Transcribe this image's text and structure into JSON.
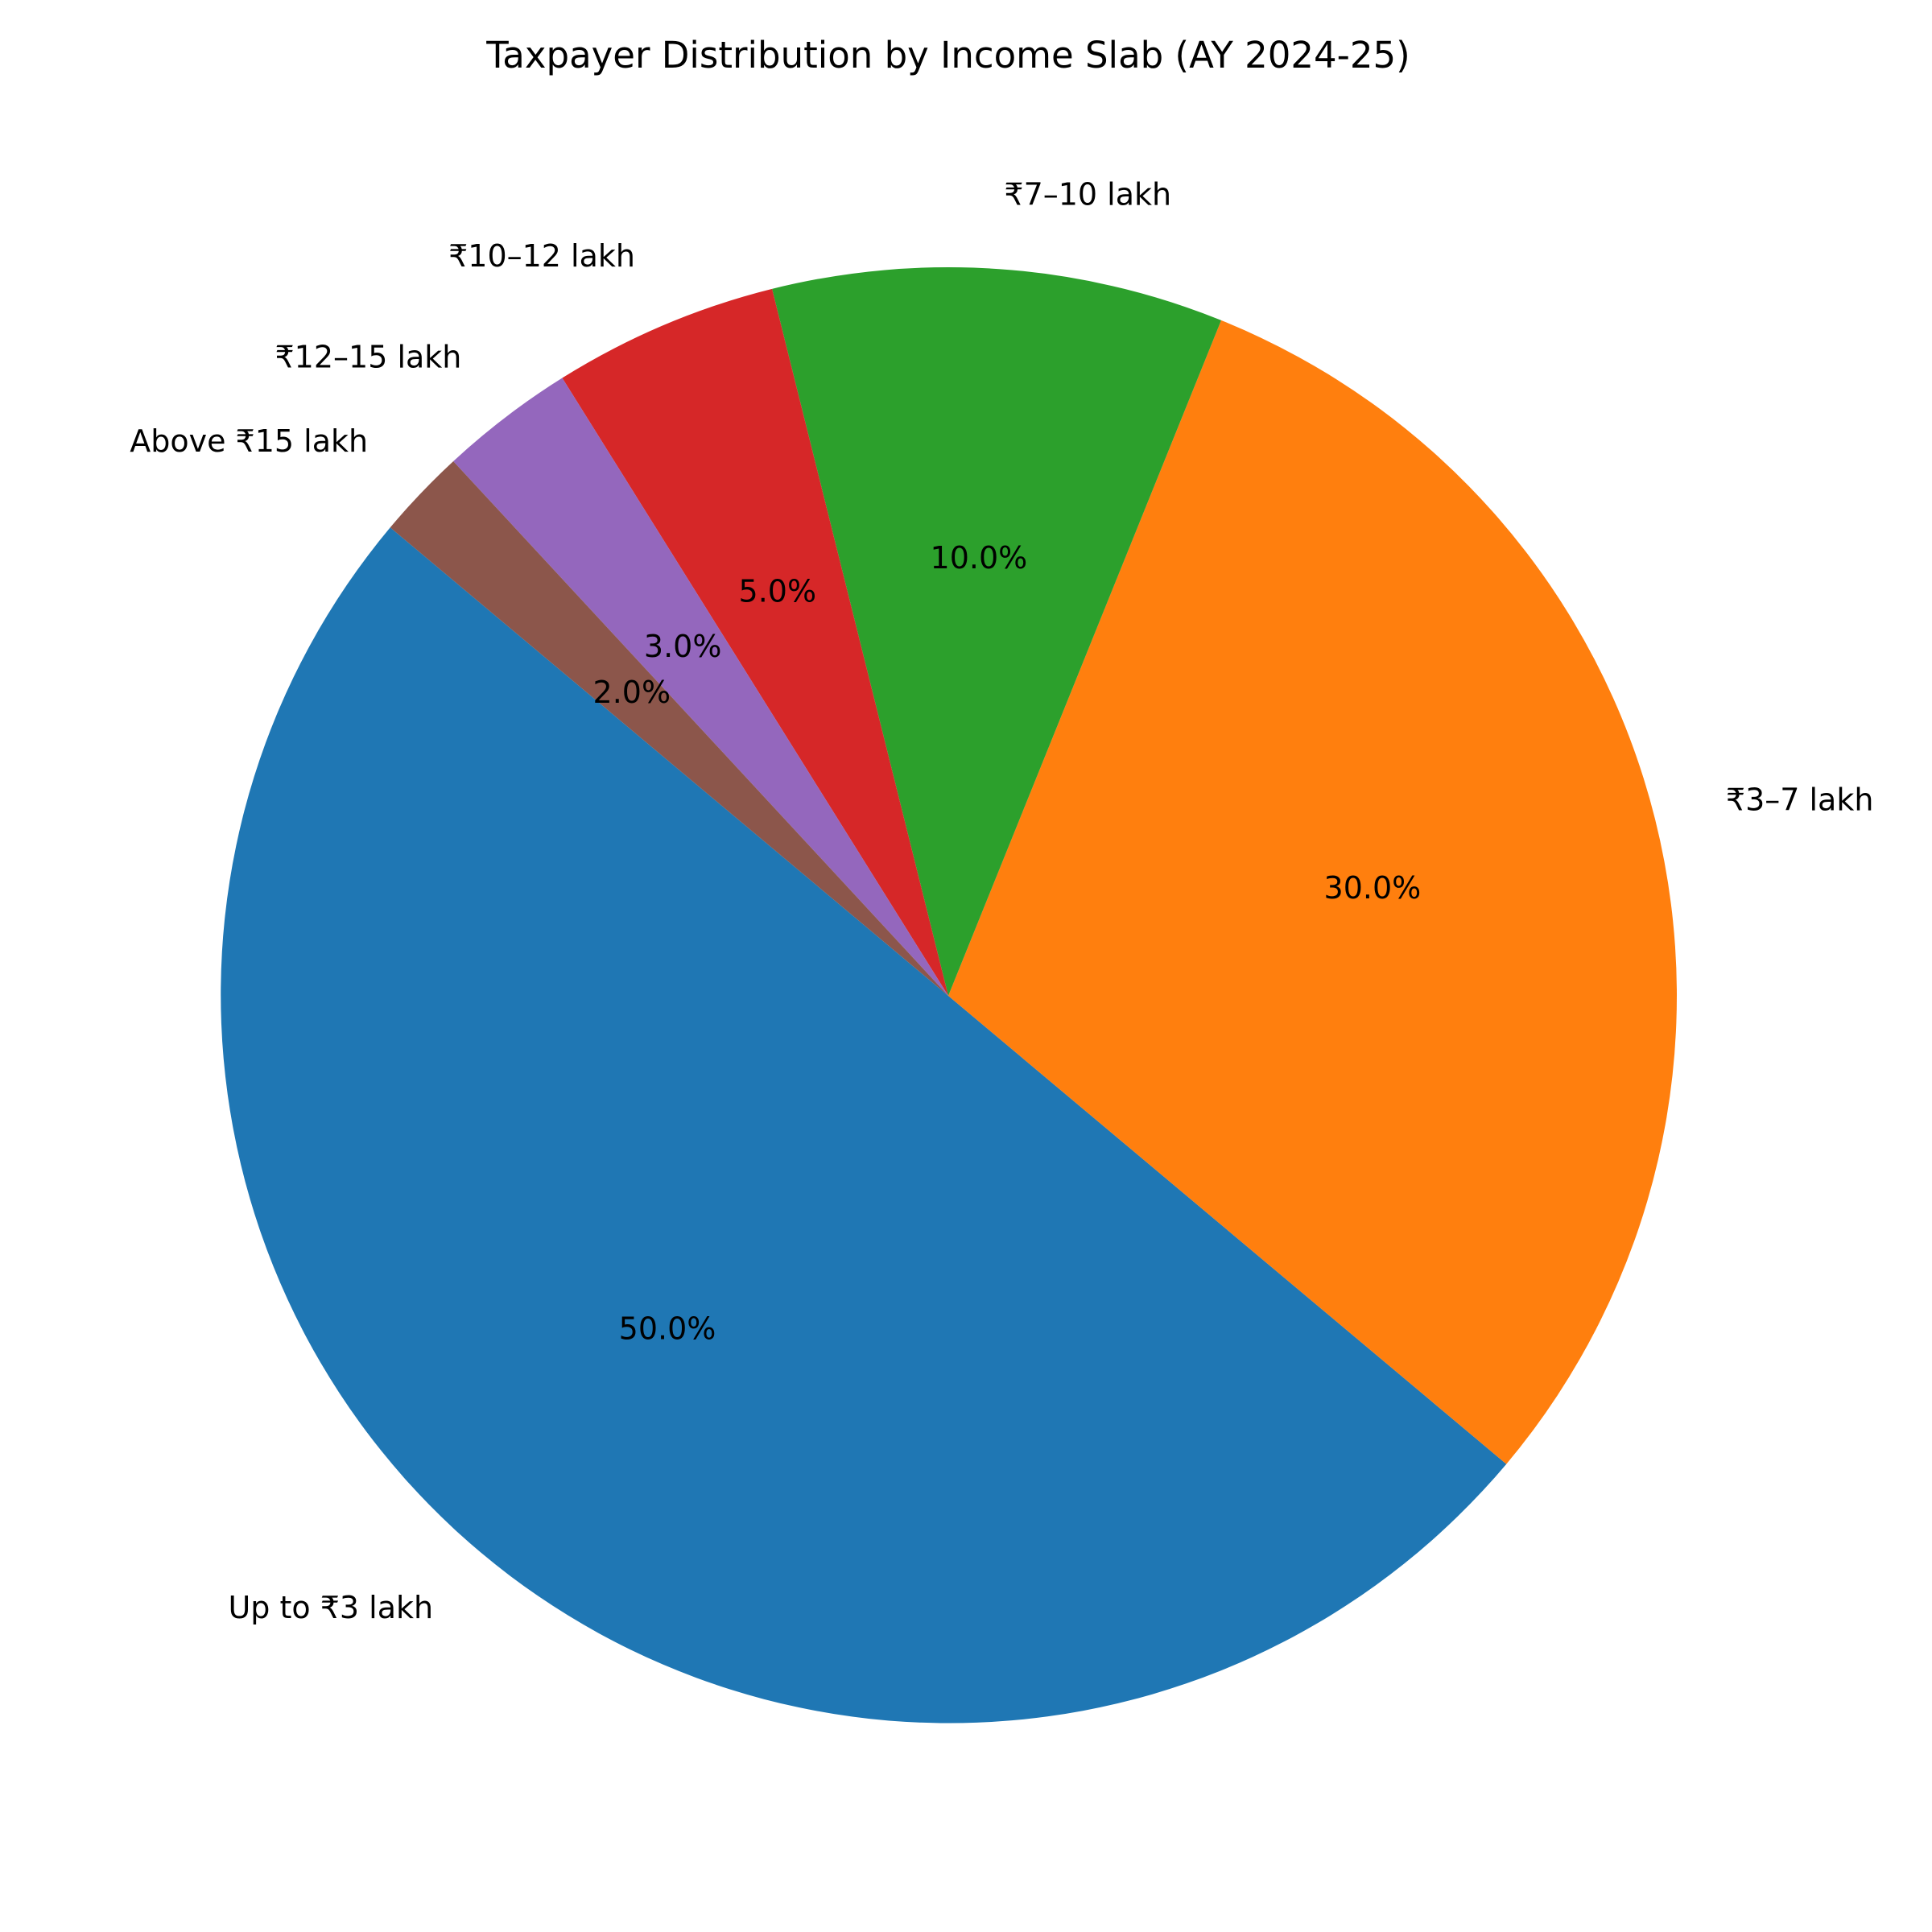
{
  "chart_data": {
    "type": "pie",
    "title": "Taxpayer Distribution by Income Slab (AY 2024-25)",
    "start_angle_deg": 140,
    "direction": "counterclockwise",
    "slices": [
      {
        "label": "Up to ₹3 lakh",
        "value": 50,
        "pct_label": "50.0%",
        "color": "#1f77b4"
      },
      {
        "label": "₹3–7 lakh",
        "value": 30,
        "pct_label": "30.0%",
        "color": "#ff7f0e"
      },
      {
        "label": "₹7–10 lakh",
        "value": 10,
        "pct_label": "10.0%",
        "color": "#2ca02c"
      },
      {
        "label": "₹10–12 lakh",
        "value": 5,
        "pct_label": "5.0%",
        "color": "#d62728"
      },
      {
        "label": "₹12–15 lakh",
        "value": 3,
        "pct_label": "3.0%",
        "color": "#9467bd"
      },
      {
        "label": "Above ₹15 lakh",
        "value": 2,
        "pct_label": "2.0%",
        "color": "#8c564b"
      }
    ]
  }
}
